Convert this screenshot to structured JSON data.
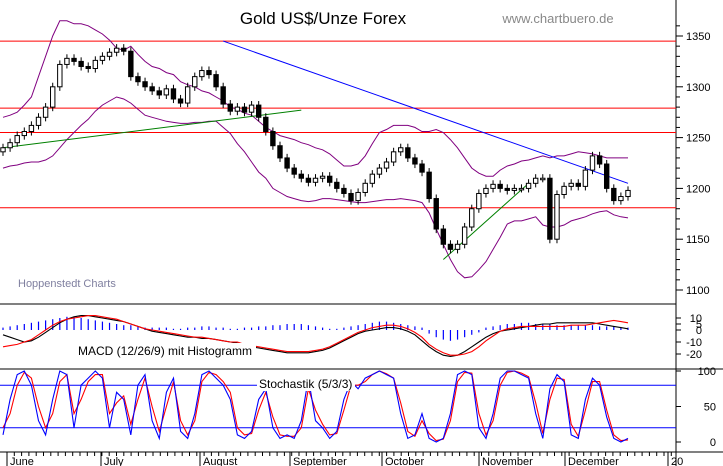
{
  "title": "Gold US$/Unze Forex",
  "source": "www.chartbuero.de",
  "watermark": "Hoppenstedt Charts",
  "colors": {
    "candle": "#000000",
    "bollinger": "#800080",
    "support": "#ff0000",
    "trend_down": "#0000ff",
    "trend_up": "#008000",
    "macd": "#000000",
    "macd_signal": "#ff0000",
    "histogram": "#0000ff",
    "stoch_k": "#0000ff",
    "stoch_d": "#ff0000",
    "stoch_level": "#0000ff"
  },
  "chart_data": [
    {
      "type": "candlestick",
      "panel": "price",
      "x_labels": [
        "June",
        "July",
        "August",
        "September",
        "October",
        "November",
        "December",
        "20"
      ],
      "y_ticks": [
        1100,
        1150,
        1200,
        1250,
        1300,
        1350
      ],
      "ylim": [
        1090,
        1370
      ],
      "horizontal_lines": [
        1345,
        1279,
        1255,
        1181
      ],
      "series": [
        {
          "kind": "close",
          "values": [
            1240,
            1245,
            1252,
            1256,
            1262,
            1270,
            1280,
            1300,
            1322,
            1328,
            1325,
            1320,
            1318,
            1326,
            1330,
            1334,
            1338,
            1335,
            1310,
            1305,
            1300,
            1296,
            1292,
            1298,
            1288,
            1284,
            1300,
            1310,
            1316,
            1312,
            1300,
            1283,
            1276,
            1280,
            1275,
            1282,
            1270,
            1256,
            1242,
            1230,
            1220,
            1214,
            1210,
            1206,
            1210,
            1212,
            1206,
            1200,
            1195,
            1188,
            1196,
            1205,
            1214,
            1220,
            1226,
            1236,
            1240,
            1230,
            1224,
            1216,
            1190,
            1160,
            1145,
            1140,
            1145,
            1162,
            1180,
            1195,
            1200,
            1204,
            1200,
            1198,
            1200,
            1200,
            1205,
            1210,
            1210,
            1150,
            1194,
            1202,
            1205,
            1202,
            1218,
            1232,
            1224,
            1200,
            1188,
            1192,
            1198
          ]
        },
        {
          "kind": "bollinger_upper",
          "values": [
            1270,
            1272,
            1275,
            1282,
            1290,
            1310,
            1330,
            1350,
            1365,
            1365,
            1362,
            1362,
            1360,
            1356,
            1352,
            1346,
            1338,
            1336,
            1340,
            1332,
            1325,
            1320,
            1318,
            1314,
            1312,
            1305,
            1302,
            1300,
            1296,
            1294,
            1290,
            1286,
            1280,
            1278,
            1274,
            1272,
            1266,
            1260,
            1256,
            1252,
            1250,
            1248,
            1245,
            1243,
            1240,
            1238,
            1234,
            1228,
            1222,
            1222,
            1224,
            1232,
            1244,
            1255,
            1258,
            1262,
            1262,
            1262,
            1260,
            1256,
            1256,
            1258,
            1255,
            1248,
            1240,
            1230,
            1220,
            1215,
            1212,
            1212,
            1218,
            1222,
            1224,
            1227,
            1228,
            1230,
            1232,
            1230,
            1232,
            1232,
            1234,
            1236,
            1235,
            1234,
            1232,
            1230,
            1230,
            1230,
            1230
          ]
        },
        {
          "kind": "bollinger_lower",
          "values": [
            1220,
            1222,
            1223,
            1225,
            1226,
            1226,
            1228,
            1232,
            1240,
            1248,
            1255,
            1262,
            1268,
            1276,
            1282,
            1286,
            1290,
            1288,
            1284,
            1278,
            1272,
            1270,
            1268,
            1266,
            1265,
            1264,
            1264,
            1265,
            1265,
            1266,
            1266,
            1260,
            1254,
            1244,
            1236,
            1226,
            1216,
            1210,
            1200,
            1196,
            1192,
            1190,
            1188,
            1187,
            1188,
            1190,
            1190,
            1189,
            1188,
            1187,
            1186,
            1186,
            1187,
            1188,
            1189,
            1189,
            1190,
            1189,
            1188,
            1186,
            1176,
            1160,
            1145,
            1130,
            1118,
            1112,
            1113,
            1120,
            1128,
            1140,
            1152,
            1165,
            1168,
            1168,
            1170,
            1172,
            1164,
            1162,
            1162,
            1164,
            1168,
            1170,
            1172,
            1175,
            1177,
            1178,
            1174,
            1172,
            1171
          ]
        },
        {
          "kind": "trend_down",
          "points": [
            [
              31,
              1345
            ],
            [
              88,
              1205
            ]
          ]
        },
        {
          "kind": "trend_up",
          "points": [
            [
              0,
              1240
            ],
            [
              42,
              1277
            ]
          ]
        },
        {
          "kind": "trend_up",
          "points": [
            [
              62,
              1130
            ],
            [
              74,
              1205
            ]
          ]
        }
      ]
    },
    {
      "type": "line",
      "panel": "macd",
      "title": "MACD (12/26/9) mit Histogramm",
      "y_ticks": [
        10,
        5,
        0,
        -10,
        -20
      ],
      "y_tick_labels": [
        "10",
        "5",
        "0",
        "-10",
        "-20"
      ],
      "series": [
        {
          "kind": "macd",
          "values": [
            -4,
            -6,
            -8,
            -10,
            -9,
            -6,
            -2,
            2,
            6,
            9,
            11,
            12,
            12,
            11,
            10,
            9,
            8,
            7,
            5,
            3,
            1,
            -1,
            -2,
            -3,
            -4,
            -5,
            -6,
            -6,
            -7,
            -7,
            -8,
            -9,
            -10,
            -11,
            -12,
            -14,
            -15,
            -16,
            -17,
            -18,
            -19,
            -19,
            -19,
            -19,
            -18,
            -17,
            -15,
            -12,
            -9,
            -6,
            -3,
            -1,
            0,
            1,
            2,
            2,
            1,
            -1,
            -4,
            -9,
            -14,
            -18,
            -21,
            -22,
            -21,
            -18,
            -14,
            -10,
            -6,
            -3,
            -1,
            0,
            1,
            2,
            3,
            4,
            5,
            5,
            6,
            6,
            6,
            6,
            6,
            6,
            5,
            4,
            3,
            2,
            1
          ]
        },
        {
          "kind": "signal",
          "values": [
            -14,
            -13,
            -12,
            -10,
            -8,
            -4,
            0,
            4,
            7,
            9,
            10,
            11,
            12,
            12,
            11,
            10,
            9,
            7,
            5,
            3,
            1,
            0,
            -1,
            -2,
            -3,
            -4,
            -5,
            -6,
            -6,
            -7,
            -8,
            -9,
            -10,
            -10,
            -12,
            -13,
            -14,
            -15,
            -16,
            -17,
            -18,
            -18,
            -18,
            -18,
            -17,
            -16,
            -14,
            -11,
            -8,
            -5,
            -2,
            0,
            2,
            3,
            4,
            4,
            3,
            1,
            -2,
            -6,
            -12,
            -16,
            -19,
            -21,
            -21,
            -20,
            -18,
            -14,
            -9,
            -5,
            -1,
            1,
            2,
            3,
            3,
            3,
            3,
            3,
            3,
            3,
            4,
            4,
            4,
            5,
            6,
            7,
            8,
            7,
            6
          ]
        },
        {
          "kind": "histogram",
          "values": [
            2,
            3,
            4,
            5,
            6,
            7,
            8,
            9,
            10,
            11,
            11,
            10,
            9,
            8,
            7,
            6,
            5,
            4,
            4,
            3,
            2,
            2,
            2,
            2,
            1,
            1,
            2,
            2,
            3,
            3,
            2,
            2,
            1,
            1,
            2,
            2,
            3,
            3,
            4,
            4,
            5,
            5,
            5,
            4,
            3,
            2,
            1,
            1,
            2,
            3,
            4,
            5,
            6,
            7,
            7,
            6,
            5,
            4,
            3,
            2,
            -3,
            -6,
            -8,
            -9,
            -8,
            -6,
            -4,
            -2,
            2,
            3,
            4,
            5,
            5,
            6,
            6,
            5,
            5,
            5,
            4,
            4,
            4,
            4,
            4,
            4,
            3,
            3,
            3,
            2,
            2
          ]
        }
      ]
    },
    {
      "type": "line",
      "panel": "stochastic",
      "title": "Stochastik (5/3/3)",
      "y_ticks": [
        100,
        50,
        0
      ],
      "y_tick_labels": [
        "100",
        "50",
        "0"
      ],
      "levels": [
        80,
        20
      ],
      "series": [
        {
          "kind": "k",
          "values": [
            10,
            60,
            95,
            100,
            80,
            30,
            10,
            60,
            100,
            95,
            20,
            80,
            90,
            100,
            90,
            20,
            70,
            60,
            10,
            80,
            95,
            30,
            5,
            70,
            90,
            15,
            5,
            40,
            95,
            100,
            90,
            80,
            60,
            10,
            5,
            15,
            60,
            75,
            20,
            5,
            10,
            5,
            30,
            90,
            30,
            20,
            5,
            15,
            60,
            85,
            75,
            90,
            95,
            100,
            95,
            90,
            40,
            5,
            10,
            40,
            5,
            0,
            5,
            40,
            95,
            100,
            95,
            20,
            5,
            40,
            90,
            100,
            100,
            95,
            90,
            40,
            5,
            75,
            95,
            85,
            10,
            5,
            60,
            90,
            80,
            35,
            5,
            0,
            5
          ]
        },
        {
          "kind": "d",
          "values": [
            20,
            40,
            80,
            98,
            90,
            50,
            20,
            40,
            85,
            95,
            40,
            60,
            85,
            95,
            95,
            40,
            55,
            65,
            25,
            60,
            90,
            50,
            15,
            50,
            85,
            30,
            10,
            30,
            85,
            98,
            95,
            85,
            70,
            20,
            10,
            12,
            45,
            70,
            35,
            10,
            8,
            8,
            20,
            75,
            45,
            25,
            10,
            12,
            45,
            80,
            80,
            85,
            95,
            100,
            96,
            90,
            55,
            15,
            8,
            30,
            12,
            2,
            4,
            30,
            85,
            98,
            97,
            40,
            10,
            30,
            80,
            98,
            100,
            97,
            92,
            55,
            12,
            60,
            90,
            88,
            25,
            8,
            45,
            85,
            85,
            45,
            10,
            2,
            3
          ]
        }
      ]
    }
  ]
}
